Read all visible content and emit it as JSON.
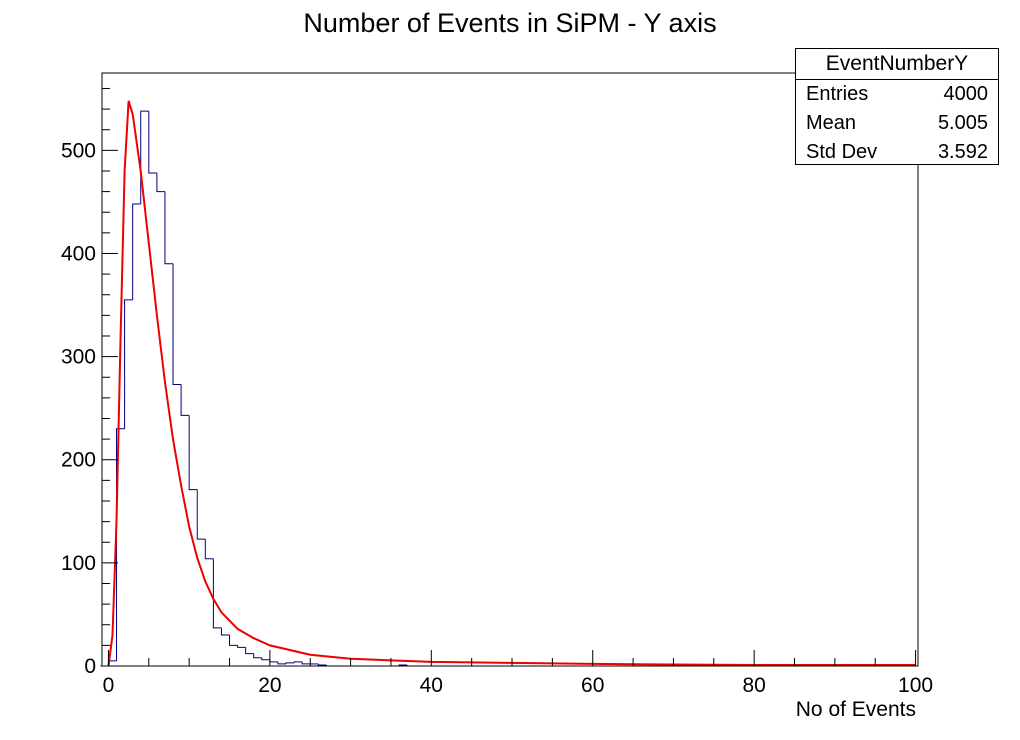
{
  "chart_data": {
    "type": "bar",
    "title": "Number of Events in SiPM - Y axis",
    "xlabel": "No of Events",
    "ylabel": "",
    "xlim": [
      0,
      100
    ],
    "ylim": [
      0,
      575
    ],
    "x_ticks": [
      "0",
      "20",
      "40",
      "60",
      "80",
      "100"
    ],
    "y_ticks": [
      "0",
      "100",
      "200",
      "300",
      "400",
      "500"
    ],
    "bin_width": 1,
    "bin_start": -1,
    "histogram_values": [
      0,
      5,
      230,
      355,
      448,
      538,
      478,
      460,
      390,
      273,
      243,
      171,
      123,
      104,
      37,
      30,
      20,
      18,
      12,
      8,
      6,
      4,
      2,
      3,
      4,
      2,
      2,
      1,
      0,
      0,
      0,
      0,
      0,
      0,
      0,
      0,
      0,
      1,
      0,
      0,
      0,
      0
    ],
    "fit": {
      "name": "fit",
      "color": "#ee0000",
      "points": [
        [
          0.0,
          0
        ],
        [
          0.5,
          30
        ],
        [
          1.0,
          140
        ],
        [
          1.5,
          320
        ],
        [
          2.0,
          480
        ],
        [
          2.5,
          548
        ],
        [
          3.0,
          535
        ],
        [
          4.0,
          480
        ],
        [
          5.0,
          410
        ],
        [
          6.0,
          340
        ],
        [
          7.0,
          275
        ],
        [
          8.0,
          220
        ],
        [
          9.0,
          175
        ],
        [
          10.0,
          135
        ],
        [
          11.0,
          105
        ],
        [
          12.0,
          82
        ],
        [
          13.0,
          65
        ],
        [
          14.0,
          52
        ],
        [
          16.0,
          36
        ],
        [
          18.0,
          27
        ],
        [
          20.0,
          20
        ],
        [
          25.0,
          11
        ],
        [
          30.0,
          7
        ],
        [
          40.0,
          4
        ],
        [
          50.0,
          3
        ],
        [
          60.0,
          2
        ],
        [
          70.0,
          1.5
        ],
        [
          80.0,
          1
        ],
        [
          100.0,
          1
        ]
      ]
    },
    "histogram_color": "#000080",
    "grid": false
  },
  "stats_box": {
    "title": "EventNumberY",
    "rows": [
      {
        "label": "Entries",
        "value": "4000"
      },
      {
        "label": "Mean",
        "value": "5.005"
      },
      {
        "label": "Std Dev",
        "value": "3.592"
      }
    ]
  }
}
